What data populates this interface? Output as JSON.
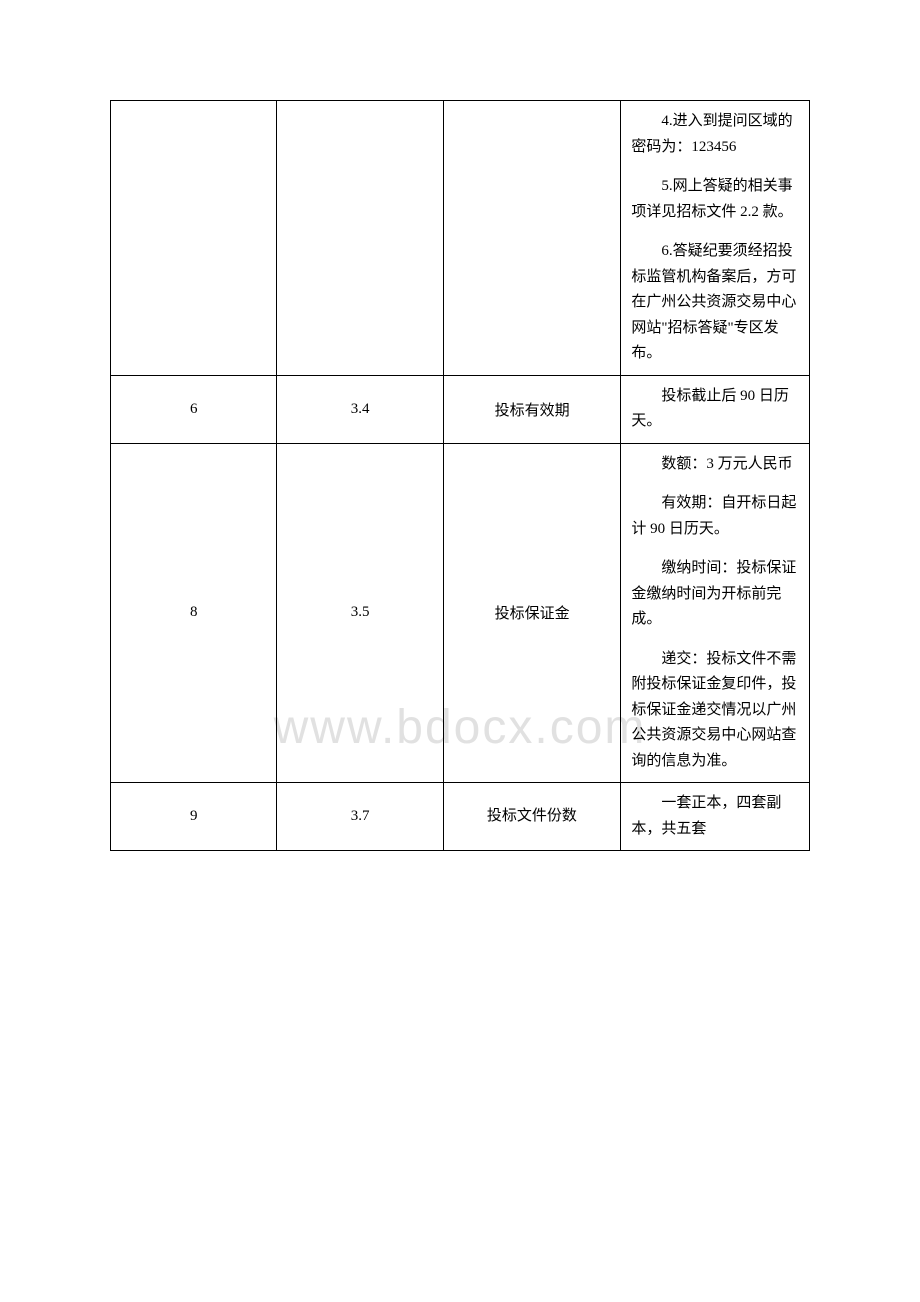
{
  "watermark": "www.bdocx.com",
  "table": {
    "rows": [
      {
        "c1": "",
        "c2": "",
        "c3": "",
        "c4_paras": [
          "4.进入到提问区域的密码为：123456",
          "5.网上答疑的相关事项详见招标文件 2.2 款。",
          "6.答疑纪要须经招投标监管机构备案后，方可在广州公共资源交易中心网站\"招标答疑\"专区发布。"
        ]
      },
      {
        "c1": "6",
        "c2": "3.4",
        "c3": "投标有效期",
        "c3_align": "center",
        "c4_paras": [
          "投标截止后 90 日历天。"
        ]
      },
      {
        "c1": "8",
        "c2": "3.5",
        "c3": "投标保证金",
        "c3_align": "center",
        "c4_paras": [
          "数额：3 万元人民币",
          "有效期：自开标日起计 90 日历天。",
          "缴纳时间：投标保证金缴纳时间为开标前完成。",
          "递交：投标文件不需附投标保证金复印件，投标保证金递交情况以广州公共资源交易中心网站查询的信息为准。"
        ]
      },
      {
        "c1": "9",
        "c2": "3.7",
        "c3": "投标文件份数",
        "c3_align": "indent",
        "c4_paras": [
          "一套正本，四套副本，共五套"
        ]
      }
    ]
  }
}
